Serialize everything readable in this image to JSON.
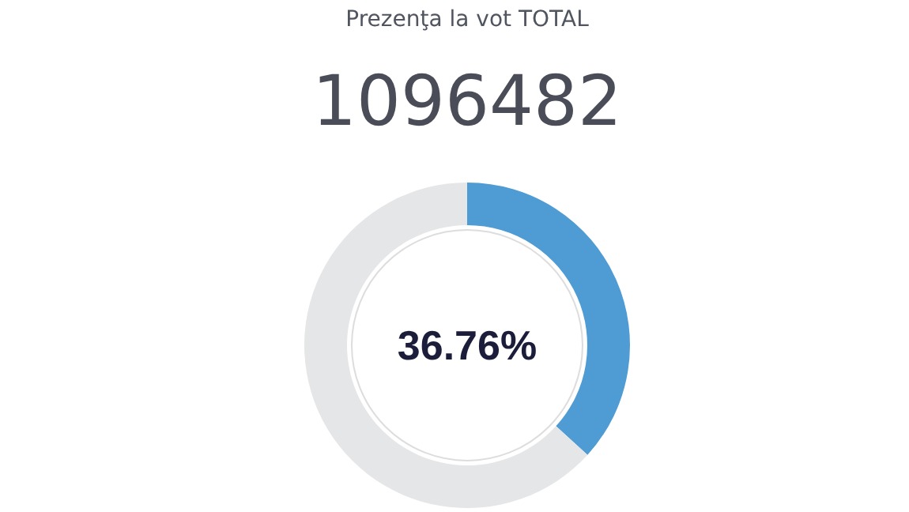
{
  "chart_data": {
    "type": "donut",
    "title": "Prezenţa la vot TOTAL",
    "subtitle": "1096482",
    "categories": [
      null,
      null
    ],
    "values": [
      36.76,
      63.24
    ],
    "colors": [
      "#4f9bd3",
      "#e5e6e8"
    ],
    "value_labels": [
      "36.76%",
      null
    ]
  }
}
